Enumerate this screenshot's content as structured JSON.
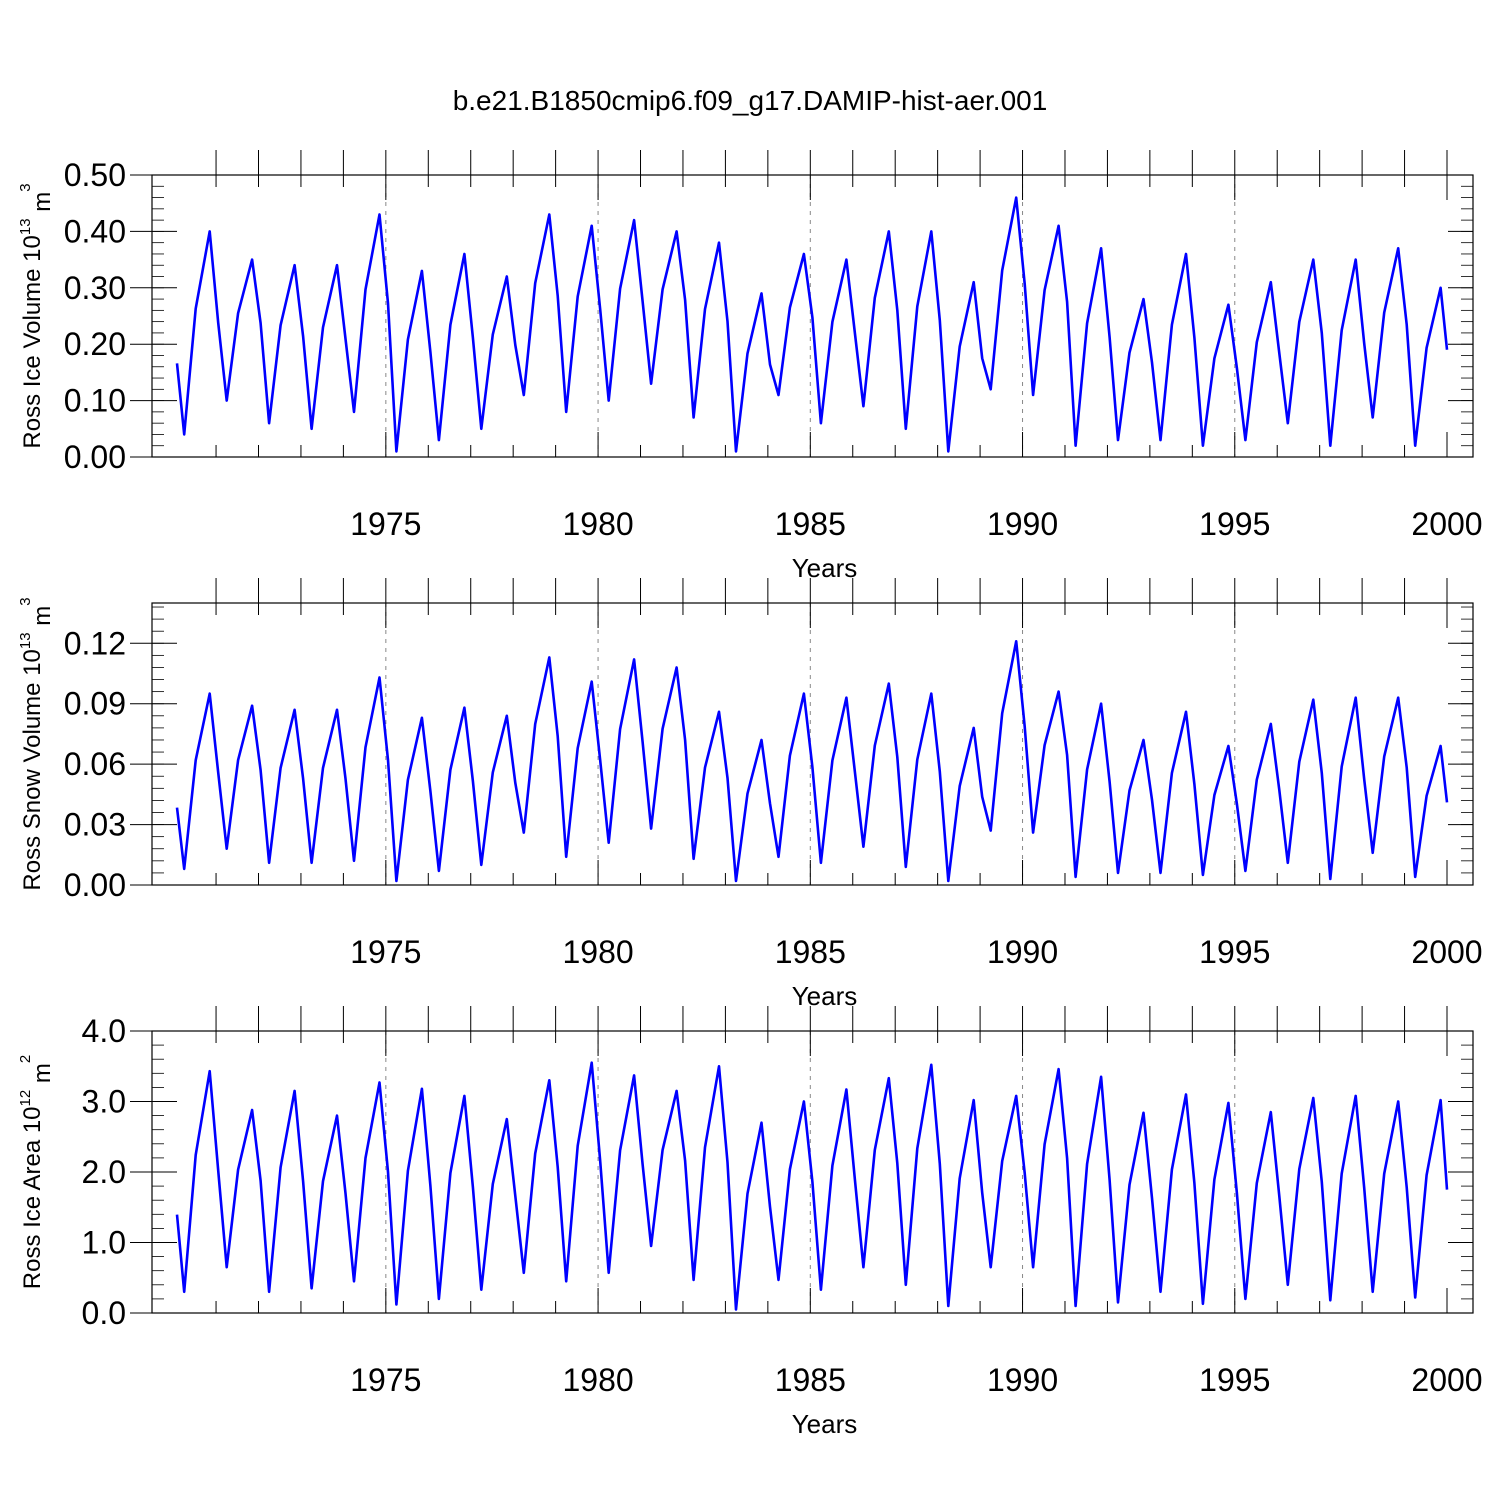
{
  "title": "b.e21.B1850cmip6.f09_g17.DAMIP-hist-aer.001",
  "colors": {
    "series": "#0000ff",
    "axis": "#000000",
    "gridline": "#888888"
  },
  "chart_data": [
    {
      "type": "line",
      "name": "ross-ice-volume",
      "ylabel_main": "Ross Ice Volume 10",
      "ylabel_exp": "13",
      "ylabel_unit": " m",
      "ylabel_unit_exp": "3",
      "xlabel": "Years",
      "xlim": [
        1970.08,
        2000.0
      ],
      "ylim": [
        0.0,
        0.5
      ],
      "yticks": [
        0.0,
        0.1,
        0.2,
        0.3,
        0.4,
        0.5
      ],
      "ytick_labels": [
        "0.00",
        "0.10",
        "0.20",
        "0.30",
        "0.40",
        "0.50"
      ],
      "xticks": [
        1975,
        1980,
        1985,
        1990,
        1995,
        2000
      ],
      "xtick_labels": [
        "1975",
        "1980",
        "1985",
        "1990",
        "1995",
        "2000"
      ],
      "peaks": [
        0.4,
        0.35,
        0.34,
        0.34,
        0.43,
        0.33,
        0.36,
        0.32,
        0.43,
        0.41,
        0.42,
        0.4,
        0.38,
        0.29,
        0.36,
        0.35,
        0.4,
        0.4,
        0.31,
        0.46,
        0.41,
        0.37,
        0.28,
        0.36,
        0.27,
        0.31,
        0.35,
        0.35,
        0.37,
        0.3
      ],
      "troughs": [
        0.04,
        0.1,
        0.06,
        0.05,
        0.08,
        0.01,
        0.03,
        0.05,
        0.11,
        0.08,
        0.1,
        0.13,
        0.07,
        0.01,
        0.11,
        0.06,
        0.09,
        0.05,
        0.01,
        0.12,
        0.11,
        0.02,
        0.03,
        0.03,
        0.02,
        0.03,
        0.06,
        0.02,
        0.07,
        0.02
      ],
      "end_value": 0.19
    },
    {
      "type": "line",
      "name": "ross-snow-volume",
      "ylabel_main": "Ross Snow Volume 10",
      "ylabel_exp": "13",
      "ylabel_unit": " m",
      "ylabel_unit_exp": "3",
      "xlabel": "Years",
      "xlim": [
        1970.08,
        2000.0
      ],
      "ylim": [
        0.0,
        0.14
      ],
      "yticks": [
        0.0,
        0.03,
        0.06,
        0.09,
        0.12
      ],
      "ytick_labels": [
        "0.00",
        "0.03",
        "0.06",
        "0.09",
        "0.12"
      ],
      "xticks": [
        1975,
        1980,
        1985,
        1990,
        1995,
        2000
      ],
      "xtick_labels": [
        "1975",
        "1980",
        "1985",
        "1990",
        "1995",
        "2000"
      ],
      "peaks": [
        0.095,
        0.089,
        0.087,
        0.087,
        0.103,
        0.083,
        0.088,
        0.084,
        0.113,
        0.101,
        0.112,
        0.108,
        0.086,
        0.072,
        0.095,
        0.093,
        0.1,
        0.095,
        0.078,
        0.121,
        0.096,
        0.09,
        0.072,
        0.086,
        0.069,
        0.08,
        0.092,
        0.093,
        0.093,
        0.069
      ],
      "troughs": [
        0.008,
        0.018,
        0.011,
        0.011,
        0.012,
        0.002,
        0.007,
        0.01,
        0.026,
        0.014,
        0.021,
        0.028,
        0.013,
        0.002,
        0.014,
        0.011,
        0.019,
        0.009,
        0.002,
        0.027,
        0.026,
        0.004,
        0.006,
        0.006,
        0.005,
        0.007,
        0.011,
        0.003,
        0.016,
        0.004
      ],
      "end_value": 0.041
    },
    {
      "type": "line",
      "name": "ross-ice-area",
      "ylabel_main": "Ross Ice Area 10",
      "ylabel_exp": "12",
      "ylabel_unit": " m",
      "ylabel_unit_exp": "2",
      "xlabel": "Years",
      "xlim": [
        1970.08,
        2000.0
      ],
      "ylim": [
        0.0,
        4.0
      ],
      "yticks": [
        0.0,
        1.0,
        2.0,
        3.0,
        4.0
      ],
      "ytick_labels": [
        "0.0",
        "1.0",
        "2.0",
        "3.0",
        "4.0"
      ],
      "xticks": [
        1975,
        1980,
        1985,
        1990,
        1995,
        2000
      ],
      "xtick_labels": [
        "1975",
        "1980",
        "1985",
        "1990",
        "1995",
        "2000"
      ],
      "peaks": [
        3.43,
        2.88,
        3.15,
        2.8,
        3.27,
        3.18,
        3.08,
        2.75,
        3.3,
        3.55,
        3.37,
        3.15,
        3.5,
        2.7,
        3.0,
        3.17,
        3.33,
        3.52,
        3.02,
        3.08,
        3.46,
        3.35,
        2.84,
        3.1,
        2.98,
        2.85,
        3.05,
        3.08,
        3.0,
        3.02
      ],
      "troughs": [
        0.3,
        0.65,
        0.3,
        0.35,
        0.45,
        0.12,
        0.2,
        0.33,
        0.57,
        0.45,
        0.57,
        0.95,
        0.47,
        0.05,
        0.47,
        0.33,
        0.65,
        0.4,
        0.1,
        0.65,
        0.65,
        0.1,
        0.15,
        0.3,
        0.13,
        0.2,
        0.4,
        0.18,
        0.3,
        0.22
      ],
      "end_value": 1.75
    }
  ]
}
